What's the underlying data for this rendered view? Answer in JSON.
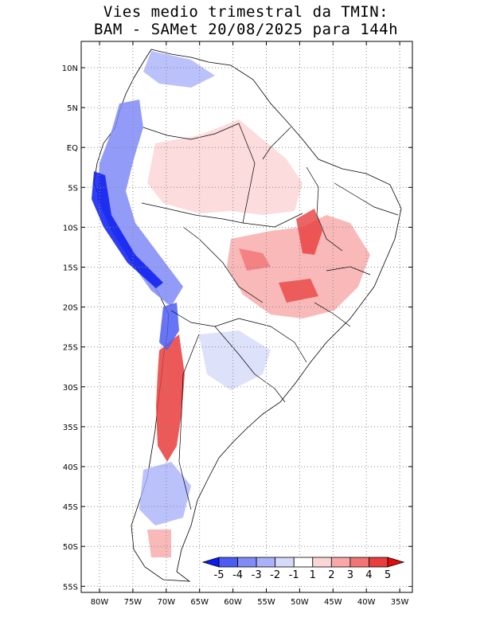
{
  "title_line1": "Vies medio trimestral da TMIN:",
  "title_line2": "BAM - SAMet 20/08/2025  para 144h",
  "lat_labels": [
    "10N",
    "5N",
    "EQ",
    "5S",
    "10S",
    "15S",
    "20S",
    "25S",
    "30S",
    "35S",
    "40S",
    "45S",
    "50S",
    "55S"
  ],
  "lon_labels": [
    "80W",
    "75W",
    "70W",
    "65W",
    "60W",
    "55W",
    "50W",
    "45W",
    "40W",
    "35W"
  ],
  "colorbar": {
    "labels": [
      "-5",
      "-4",
      "-3",
      "-2",
      "-1",
      "1",
      "2",
      "3",
      "4",
      "5"
    ],
    "colors": [
      "#0a1cf0",
      "#4b5cf5",
      "#7f8bf7",
      "#aab2fa",
      "#d6daf9",
      "#ffffff",
      "#fbd6d6",
      "#f8a8a8",
      "#f27474",
      "#ea3c3c",
      "#e60a0a"
    ]
  },
  "colors": {
    "blue_bias": "#3246f0",
    "red_bias": "#ef3232",
    "grid": "#888888"
  }
}
